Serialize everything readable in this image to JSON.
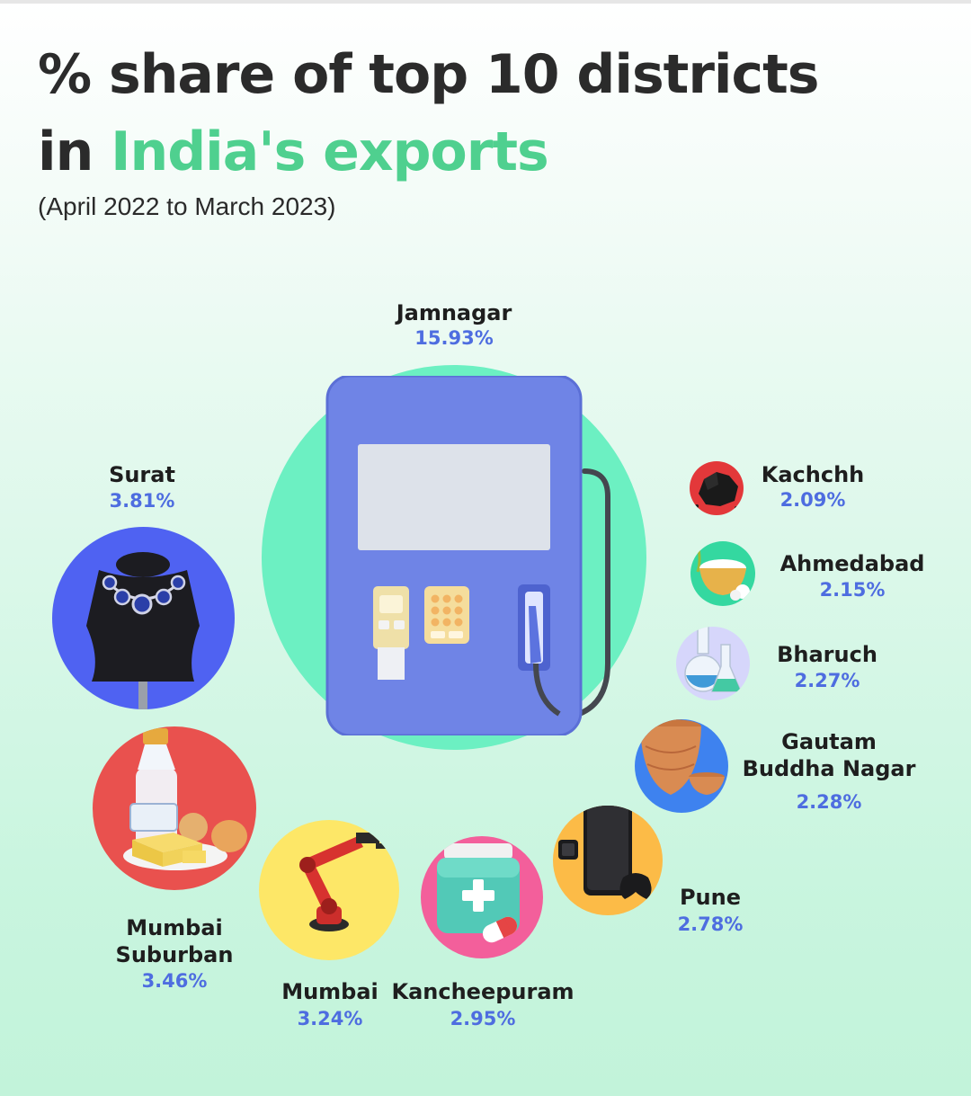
{
  "title_line1": "% share of top 10 districts",
  "title_line2_prefix": "in ",
  "title_line2_accent": "India's exports",
  "subtitle": "(April 2022 to March 2023)",
  "colors": {
    "title": "#2b2b2b",
    "accent": "#4fd08f",
    "value": "#4e6de0"
  },
  "chart_data": {
    "type": "bubble",
    "value_unit": "%",
    "items": [
      {
        "district": "Jamnagar",
        "value": 15.93,
        "value_label": "15.93%",
        "icon": "fuel-pump-icon",
        "color": "#6cf0c2"
      },
      {
        "district": "Surat",
        "value": 3.81,
        "value_label": "3.81%",
        "icon": "necklace-icon",
        "color": "#4f62f2"
      },
      {
        "district": "Mumbai Suburban",
        "value": 3.46,
        "value_label": "3.46%",
        "icon": "milk-butter-icon",
        "color": "#e9514e"
      },
      {
        "district": "Mumbai",
        "value": 3.24,
        "value_label": "3.24%",
        "icon": "robotic-arm-icon",
        "color": "#fde767"
      },
      {
        "district": "Kancheepuram",
        "value": 2.95,
        "value_label": "2.95%",
        "icon": "medicine-jar-icon",
        "color": "#f35f9b"
      },
      {
        "district": "Pune",
        "value": 2.78,
        "value_label": "2.78%",
        "icon": "smartphone-icon",
        "color": "#fcbb47"
      },
      {
        "district": "Gautam Buddha Nagar",
        "value": 2.28,
        "value_label": "2.28%",
        "icon": "clay-pot-icon",
        "color": "#3e82ef"
      },
      {
        "district": "Bharuch",
        "value": 2.27,
        "value_label": "2.27%",
        "icon": "lab-flask-icon",
        "color": "#d6d6fb"
      },
      {
        "district": "Ahmedabad",
        "value": 2.15,
        "value_label": "2.15%",
        "icon": "rice-cotton-icon",
        "color": "#34d8a0"
      },
      {
        "district": "Kachchh",
        "value": 2.09,
        "value_label": "2.09%",
        "icon": "coal-icon",
        "color": "#e3383a"
      }
    ]
  }
}
